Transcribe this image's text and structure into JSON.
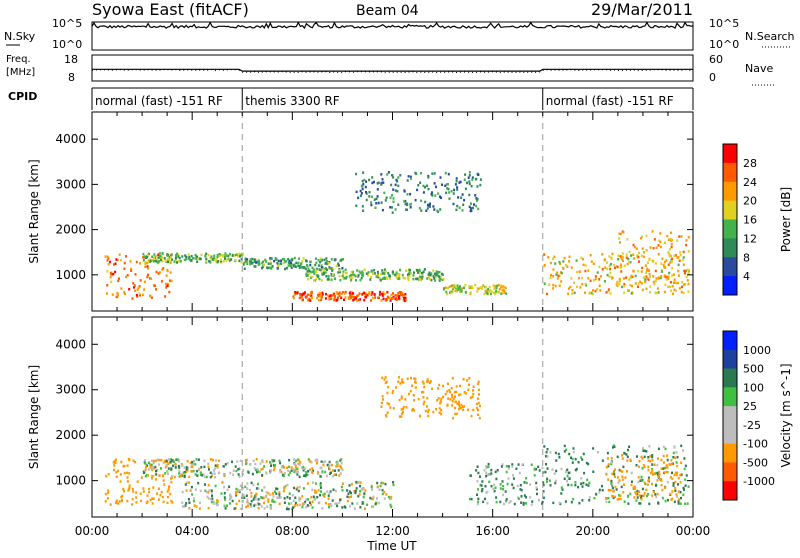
{
  "header": {
    "site": "Syowa East (fitACF)",
    "beam": "Beam 04",
    "date": "29/Mar/2011"
  },
  "strip_labels": {
    "nsky": "N.Sky",
    "nsearch": "N.Search",
    "freq_line1": "Freq.",
    "freq_line2": "[MHz]",
    "nave": "Nave",
    "cpid": "CPID",
    "nsky_top": "10^5",
    "nsky_bot": "10^0",
    "nsearch_top": "10^5",
    "nsearch_bot": "10^0",
    "freq_top": "18",
    "freq_bot": "8",
    "nave_top": "60",
    "nave_bot": "0"
  },
  "cpid_segments": [
    {
      "label": "normal (fast) -151 RF",
      "start_hour": 0,
      "end_hour": 6
    },
    {
      "label": "themis 3300 RF",
      "start_hour": 6,
      "end_hour": 18
    },
    {
      "label": "normal (fast) -151 RF",
      "start_hour": 18,
      "end_hour": 24
    }
  ],
  "xaxis": {
    "label": "Time UT",
    "ticks": [
      "00:00",
      "04:00",
      "08:00",
      "12:00",
      "16:00",
      "20:00",
      "00:00"
    ]
  },
  "colors": {
    "power": [
      "#0020ff",
      "#2a4aa0",
      "#2f8a5a",
      "#44b24a",
      "#e0d020",
      "#ff9a00",
      "#ff5a00",
      "#ff0000"
    ],
    "velocity": [
      "#ff0000",
      "#ff5a00",
      "#ff9a00",
      "#bdbdbd",
      "#bdbdbd",
      "#40c040",
      "#2a7a50",
      "#2040a0",
      "#0020ff"
    ]
  },
  "chart_data": [
    {
      "type": "heatmap",
      "name": "power",
      "xlabel": "Time UT",
      "ylabel": "Slant Range [km]",
      "xlim": [
        0,
        24
      ],
      "ylim": [
        200,
        4600
      ],
      "yticks": [
        "1000",
        "2000",
        "3000",
        "4000"
      ],
      "colorbar": {
        "label": "Power [dB]",
        "ticks": [
          "4",
          "8",
          "12",
          "16",
          "20",
          "24",
          "28"
        ],
        "range": [
          0,
          32
        ]
      },
      "echo_regions": [
        {
          "t0": 0.5,
          "t1": 3.2,
          "r0": 500,
          "r1": 1500,
          "value": 24
        },
        {
          "t0": 2.0,
          "t1": 6.0,
          "r0": 1300,
          "r1": 1500,
          "value": 14
        },
        {
          "t0": 6.0,
          "t1": 10.0,
          "r0": 1150,
          "r1": 1400,
          "value": 12
        },
        {
          "t0": 8.0,
          "t1": 12.5,
          "r0": 450,
          "r1": 650,
          "value": 26
        },
        {
          "t0": 8.5,
          "t1": 14.0,
          "r0": 900,
          "r1": 1150,
          "value": 14
        },
        {
          "t0": 10.5,
          "t1": 15.5,
          "r0": 2400,
          "r1": 3300,
          "value": 10
        },
        {
          "t0": 14.0,
          "t1": 16.5,
          "r0": 600,
          "r1": 800,
          "value": 18
        },
        {
          "t0": 18.0,
          "t1": 23.8,
          "r0": 600,
          "r1": 1500,
          "value": 20
        },
        {
          "t0": 21.0,
          "t1": 23.8,
          "r0": 800,
          "r1": 2000,
          "value": 22
        }
      ]
    },
    {
      "type": "heatmap",
      "name": "velocity",
      "xlabel": "Time UT",
      "ylabel": "Slant Range [km]",
      "xlim": [
        0,
        24
      ],
      "ylim": [
        200,
        4600
      ],
      "yticks": [
        "1000",
        "2000",
        "3000",
        "4000"
      ],
      "colorbar": {
        "label": "Velocity [m s^-1]",
        "ticks": [
          "-1000",
          "-500",
          "-100",
          "-25",
          "25",
          "100",
          "500",
          "1000"
        ]
      },
      "echo_regions": [
        {
          "t0": 0.5,
          "t1": 3.2,
          "r0": 500,
          "r1": 1500,
          "value": -300
        },
        {
          "t0": 2.0,
          "t1": 10.0,
          "r0": 1100,
          "r1": 1500,
          "value": 0
        },
        {
          "t0": 3.5,
          "t1": 12.0,
          "r0": 400,
          "r1": 1000,
          "value": 0
        },
        {
          "t0": 11.5,
          "t1": 15.5,
          "r0": 2400,
          "r1": 3300,
          "value": -300
        },
        {
          "t0": 15.0,
          "t1": 18.0,
          "r0": 500,
          "r1": 1400,
          "value": 100
        },
        {
          "t0": 18.0,
          "t1": 23.8,
          "r0": 500,
          "r1": 1800,
          "value": 150
        },
        {
          "t0": 20.5,
          "t1": 23.5,
          "r0": 600,
          "r1": 1600,
          "value": -300
        }
      ]
    }
  ]
}
